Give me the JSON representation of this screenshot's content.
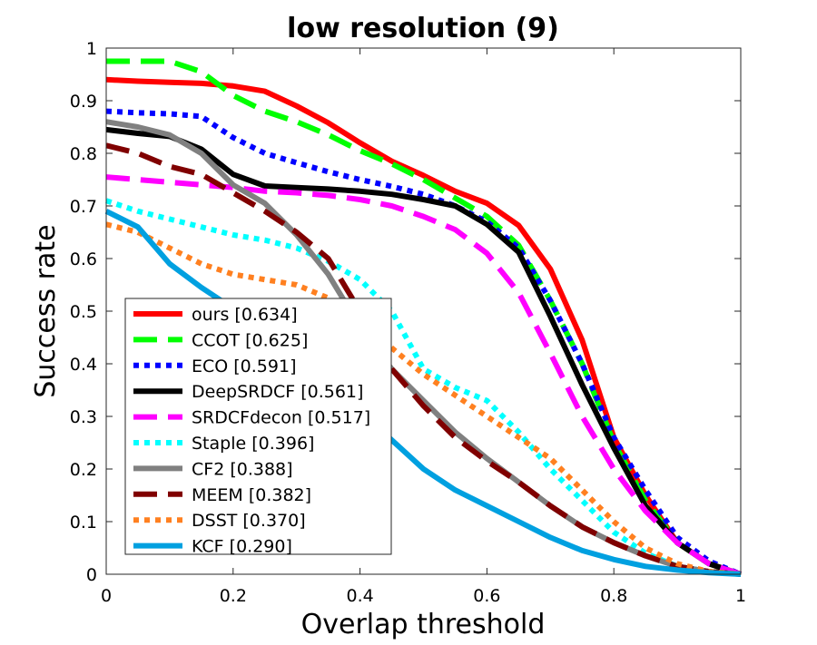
{
  "chart_data": {
    "type": "line",
    "title": "low resolution (9)",
    "xlabel": "Overlap threshold",
    "ylabel": "Success rate",
    "xlim": [
      0,
      1
    ],
    "ylim": [
      0,
      1
    ],
    "x_ticks": [
      "0",
      "0.2",
      "0.4",
      "0.6",
      "0.8",
      "1"
    ],
    "y_ticks": [
      "0",
      "0.1",
      "0.2",
      "0.3",
      "0.4",
      "0.5",
      "0.6",
      "0.7",
      "0.8",
      "0.9",
      "1"
    ],
    "grid": false,
    "legend_position": "bottom-left",
    "x": [
      0,
      0.05,
      0.1,
      0.15,
      0.2,
      0.25,
      0.3,
      0.35,
      0.4,
      0.45,
      0.5,
      0.55,
      0.6,
      0.65,
      0.7,
      0.75,
      0.8,
      0.85,
      0.9,
      0.95,
      1
    ],
    "series": [
      {
        "name": "ours [0.634]",
        "color": "#ff0000",
        "dash": "solid",
        "values": [
          0.94,
          0.937,
          0.935,
          0.933,
          0.928,
          0.918,
          0.89,
          0.858,
          0.82,
          0.785,
          0.758,
          0.728,
          0.705,
          0.663,
          0.58,
          0.445,
          0.26,
          0.15,
          0.06,
          0.02,
          0.0
        ]
      },
      {
        "name": "CCOT [0.625]",
        "color": "#00ff00",
        "dash": "dash",
        "values": [
          0.975,
          0.975,
          0.975,
          0.955,
          0.91,
          0.88,
          0.86,
          0.835,
          0.805,
          0.78,
          0.75,
          0.715,
          0.68,
          0.625,
          0.52,
          0.4,
          0.25,
          0.14,
          0.06,
          0.02,
          0.0
        ]
      },
      {
        "name": "ECO [0.591]",
        "color": "#0000ff",
        "dash": "dot",
        "values": [
          0.88,
          0.877,
          0.875,
          0.87,
          0.83,
          0.8,
          0.782,
          0.765,
          0.75,
          0.737,
          0.722,
          0.7,
          0.67,
          0.62,
          0.52,
          0.4,
          0.26,
          0.16,
          0.07,
          0.025,
          0.0
        ]
      },
      {
        "name": "DeepSRDCF [0.561]",
        "color": "#000000",
        "dash": "solid",
        "values": [
          0.845,
          0.838,
          0.832,
          0.808,
          0.76,
          0.738,
          0.735,
          0.732,
          0.728,
          0.722,
          0.712,
          0.7,
          0.665,
          0.612,
          0.49,
          0.36,
          0.24,
          0.13,
          0.06,
          0.02,
          0.0
        ]
      },
      {
        "name": "SRDCFdecon [0.517]",
        "color": "#ff00ff",
        "dash": "dash",
        "values": [
          0.755,
          0.75,
          0.745,
          0.74,
          0.735,
          0.728,
          0.725,
          0.72,
          0.712,
          0.7,
          0.68,
          0.655,
          0.61,
          0.535,
          0.42,
          0.3,
          0.2,
          0.12,
          0.06,
          0.02,
          0.0
        ]
      },
      {
        "name": "Staple [0.396]",
        "color": "#00ffff",
        "dash": "dot",
        "values": [
          0.71,
          0.69,
          0.675,
          0.66,
          0.645,
          0.635,
          0.62,
          0.595,
          0.56,
          0.5,
          0.39,
          0.355,
          0.33,
          0.27,
          0.2,
          0.14,
          0.08,
          0.04,
          0.015,
          0.005,
          0.0
        ]
      },
      {
        "name": "CF2 [0.388]",
        "color": "#808080",
        "dash": "solid",
        "values": [
          0.86,
          0.85,
          0.835,
          0.8,
          0.74,
          0.705,
          0.645,
          0.57,
          0.47,
          0.39,
          0.33,
          0.27,
          0.22,
          0.175,
          0.13,
          0.09,
          0.06,
          0.035,
          0.015,
          0.005,
          0.0
        ]
      },
      {
        "name": "MEEM [0.382]",
        "color": "#800000",
        "dash": "dash",
        "values": [
          0.815,
          0.8,
          0.775,
          0.76,
          0.725,
          0.69,
          0.65,
          0.6,
          0.5,
          0.39,
          0.32,
          0.26,
          0.215,
          0.175,
          0.13,
          0.09,
          0.06,
          0.035,
          0.015,
          0.005,
          0.0
        ]
      },
      {
        "name": "DSST [0.370]",
        "color": "#ff8020",
        "dash": "dot",
        "values": [
          0.665,
          0.65,
          0.62,
          0.59,
          0.57,
          0.56,
          0.55,
          0.525,
          0.48,
          0.43,
          0.38,
          0.34,
          0.3,
          0.26,
          0.22,
          0.16,
          0.1,
          0.05,
          0.02,
          0.005,
          0.0
        ]
      },
      {
        "name": "KCF [0.290]",
        "color": "#00a0e0",
        "dash": "solid",
        "values": [
          0.69,
          0.66,
          0.59,
          0.545,
          0.505,
          0.47,
          0.43,
          0.375,
          0.31,
          0.255,
          0.2,
          0.16,
          0.13,
          0.1,
          0.07,
          0.045,
          0.028,
          0.015,
          0.008,
          0.003,
          0.0
        ]
      }
    ]
  }
}
